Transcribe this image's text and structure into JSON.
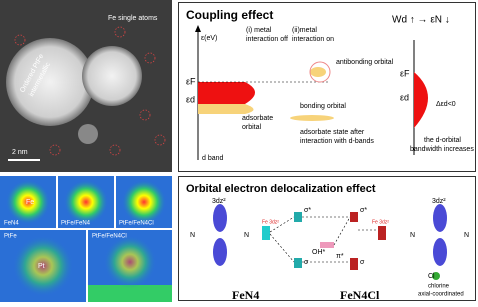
{
  "micrograph": {
    "label_line1": "Ordered PtFe",
    "label_line2": "intermetallic",
    "fe_label": "Fe single atoms",
    "scale": "2 nm"
  },
  "coupling": {
    "title": "Coupling effect",
    "off_line1": "(i) metal",
    "off_line2": "interaction off",
    "on_line1": "(ii)metal",
    "on_line2": "interaction on",
    "trend": "Wd ↑ → εN ↓",
    "axis": "ε(eV)",
    "ef_left": "εF",
    "ed_left": "εd",
    "adsorbate_line1": "adsorbate",
    "adsorbate_line2": "orbital",
    "bonding": "bonding orbital",
    "antibonding": "antibonding orbital",
    "after_line1": "adsorbate state after",
    "after_line2": "interaction with d-bands",
    "dband": "d band",
    "ef_right": "εF",
    "ed_right": "εd",
    "shift": "Δεd<0",
    "width_line1": "the d-orbital",
    "width_line2": "bandwidth increases"
  },
  "maps": {
    "p1": "FeN4",
    "p2": "PtFe/FeN4",
    "p3": "PtFe/FeN4Cl",
    "p4": "PtFe",
    "p5": "PtFe/FeN4Cl",
    "fe": "Fe",
    "pt": "Pt"
  },
  "orbital": {
    "title": "Orbital electron delocalization effect",
    "dz2_left": "3dz²",
    "dz2_right": "3dz²",
    "fe3dz2_left": "Fe 3dz²",
    "fe3dz2_right": "Fe 3dz²",
    "sigma_star_left": "σ*",
    "sigma_left": "σ",
    "pi_star": "π*",
    "oh": "OH*",
    "sigma_star_right": "σ*",
    "sigma_right": "σ",
    "n": "N",
    "cl": "Cl",
    "cl_line1": "chlorine",
    "cl_line2": "axial-coordinated",
    "name_left": "FeN4",
    "name_right": "FeN4Cl"
  }
}
